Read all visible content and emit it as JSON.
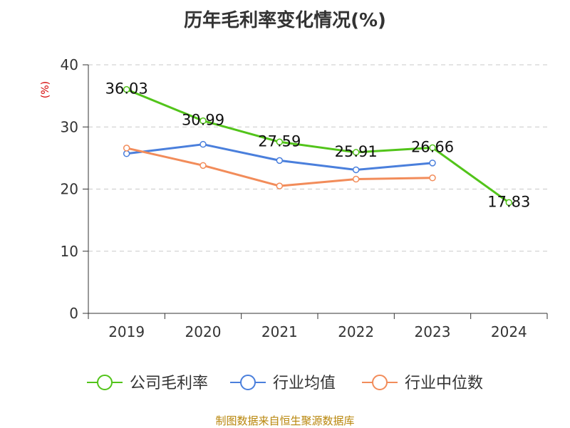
{
  "chart_data": {
    "type": "line",
    "title": "历年毛利率变化情况(%)",
    "ylabel": "(%)",
    "xlabel": "",
    "categories": [
      "2019",
      "2020",
      "2021",
      "2022",
      "2023",
      "2024"
    ],
    "ylim": [
      0,
      40
    ],
    "yticks": [
      0,
      10,
      20,
      30,
      40
    ],
    "grid": true,
    "legend_position": "bottom",
    "series": [
      {
        "name": "公司毛利率",
        "color": "#52c41a",
        "labels": true,
        "values": [
          36.03,
          30.99,
          27.59,
          25.91,
          26.66,
          17.83
        ]
      },
      {
        "name": "行业均值",
        "color": "#4a7fdc",
        "labels": false,
        "values": [
          25.7,
          27.2,
          24.6,
          23.1,
          24.2,
          null
        ]
      },
      {
        "name": "行业中位数",
        "color": "#f28c5a",
        "labels": false,
        "values": [
          26.6,
          23.8,
          20.5,
          21.6,
          21.8,
          null
        ]
      }
    ]
  },
  "source": "制图数据来自恒生聚源数据库"
}
